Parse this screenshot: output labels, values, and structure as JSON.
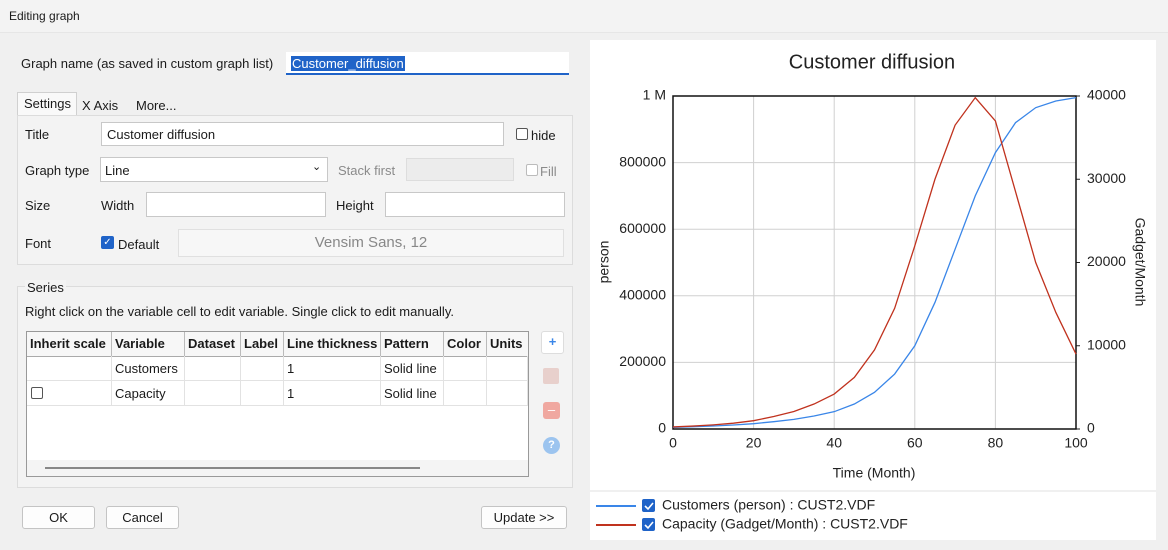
{
  "window": {
    "title": "Editing graph"
  },
  "graph_name": {
    "label": "Graph name (as saved in custom graph list)",
    "value": "Customer_diffusion"
  },
  "tabs": [
    "Settings",
    "X Axis",
    "More..."
  ],
  "settings": {
    "title_label": "Title",
    "title_value": "Customer diffusion",
    "hide": "hide",
    "graph_type_label": "Graph type",
    "graph_type_value": "Line",
    "stack_first": "Stack first",
    "fill": "Fill",
    "size_label": "Size",
    "width_label": "Width",
    "height_label": "Height",
    "font_label": "Font",
    "default": "Default",
    "font_value": "Vensim Sans, 12"
  },
  "series_panel": {
    "title": "Series",
    "instructions": "Right click on the variable cell to edit variable. Single click to edit manually.",
    "columns": [
      "Inherit scale",
      "Variable",
      "Dataset",
      "Label",
      "Line thickness",
      "Pattern",
      "Color",
      "Units"
    ],
    "rows": [
      {
        "variable": "Customers",
        "line_thickness": 1,
        "pattern": "Solid line"
      },
      {
        "variable": "Capacity",
        "line_thickness": 1,
        "pattern": "Solid line"
      }
    ]
  },
  "buttons": {
    "ok": "OK",
    "cancel": "Cancel",
    "update": "Update >>"
  },
  "chart_data": {
    "type": "line",
    "title": "Customer diffusion",
    "x_label": "Time (Month)",
    "y_label": "person",
    "y2_label": "Gadget/Month",
    "x": [
      0,
      5,
      10,
      15,
      20,
      25,
      30,
      35,
      40,
      45,
      50,
      55,
      60,
      65,
      70,
      75,
      80,
      85,
      90,
      95,
      100
    ],
    "series": [
      {
        "name": "Customers (person) : CUST2.VDF",
        "color": "#3a86e8",
        "values": [
          5000,
          7000,
          9000,
          12000,
          16000,
          22000,
          29000,
          39000,
          52000,
          75000,
          110000,
          165000,
          250000,
          380000,
          540000,
          700000,
          830000,
          920000,
          965000,
          985000,
          995000
        ]
      },
      {
        "name": "Capacity (Gadget/Month) : CUST2.VDF",
        "color": "#c0321e",
        "axis": "y2",
        "values": [
          250,
          350,
          500,
          700,
          1000,
          1500,
          2100,
          3000,
          4200,
          6200,
          9500,
          14500,
          22000,
          30000,
          36500,
          39800,
          37000,
          28500,
          20000,
          14000,
          9000
        ]
      }
    ],
    "xlim": [
      0,
      100
    ],
    "xticks": [
      0,
      20,
      40,
      60,
      80,
      100
    ],
    "ylim": [
      0,
      1000000
    ],
    "yticks": [
      0,
      200000,
      400000,
      600000,
      800000,
      {
        "value": 1000000,
        "label": "1 M"
      }
    ],
    "y2lim": [
      0,
      40000
    ],
    "y2ticks": [
      0,
      10000,
      20000,
      30000,
      40000
    ],
    "grid": true,
    "legend": "bottom"
  }
}
